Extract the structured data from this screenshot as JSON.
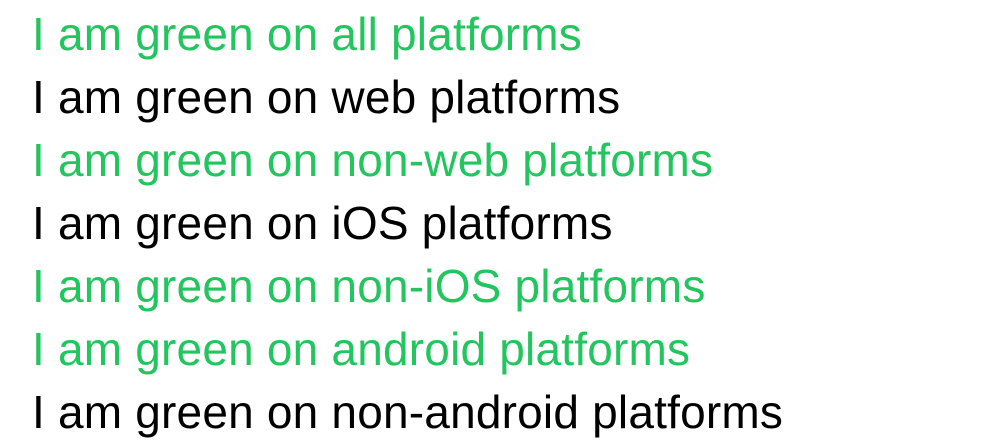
{
  "colors": {
    "green": "#22c55e",
    "black": "#000000"
  },
  "lines": [
    {
      "text": "I am green on all platforms",
      "color": "#22c55e"
    },
    {
      "text": "I am green on web platforms",
      "color": "#000000"
    },
    {
      "text": "I am green on non-web platforms",
      "color": "#22c55e"
    },
    {
      "text": "I am green on iOS platforms",
      "color": "#000000"
    },
    {
      "text": "I am green on non-iOS platforms",
      "color": "#22c55e"
    },
    {
      "text": "I am green on android platforms",
      "color": "#22c55e"
    },
    {
      "text": "I am green on non-android platforms",
      "color": "#000000"
    }
  ]
}
